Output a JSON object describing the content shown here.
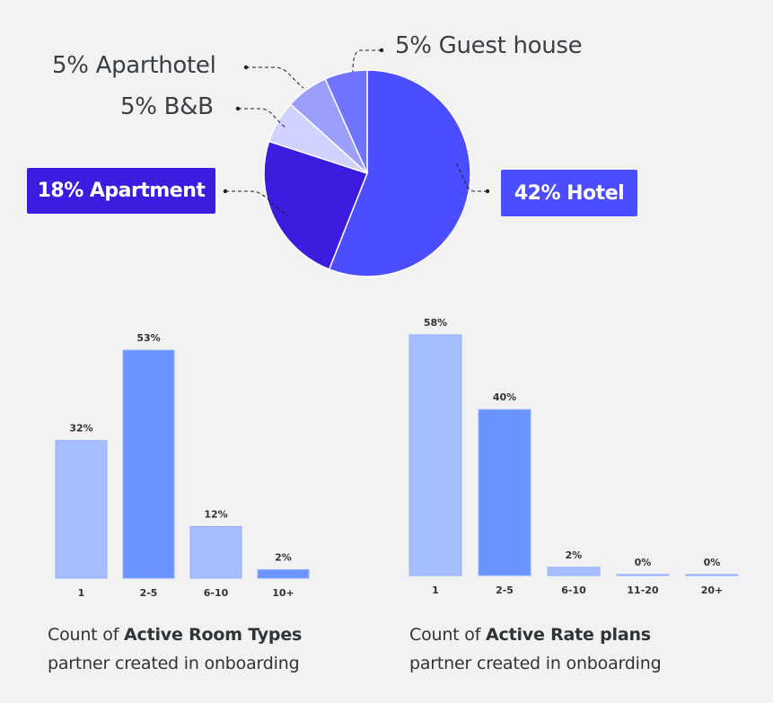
{
  "colors": {
    "hotel": "#4b4dff",
    "apartment": "#3d1ce0",
    "bnb": "#d1d2ff",
    "aparthotel": "#9b9efb",
    "guest_house": "#6f73ff",
    "bar_light": "#a6beff",
    "bar_dark": "#6b94ff",
    "bar_edge": "#90b0fb"
  },
  "pie": {
    "labels": {
      "hotel": "42% Hotel",
      "apartment": "18% Apartment",
      "bnb": "5% B&B",
      "aparthotel": "5% Aparthotel",
      "guest_house": "5% Guest house"
    }
  },
  "captions": {
    "room_types": {
      "prefix": "Count of ",
      "bold": "Active Room Types",
      "line2": "partner created in onboarding"
    },
    "rate_plans": {
      "prefix": "Count of ",
      "bold": "Active Rate plans",
      "line2": "partner created in onboarding"
    }
  },
  "chart_data": [
    {
      "type": "pie",
      "categories": [
        "Hotel",
        "Apartment",
        "B&B",
        "Aparthotel",
        "Guest house"
      ],
      "values": [
        42,
        18,
        5,
        5,
        5
      ],
      "unit": "%"
    },
    {
      "type": "bar",
      "categories": [
        "1",
        "2-5",
        "6-10",
        "10+"
      ],
      "values": [
        32,
        53,
        12,
        2
      ],
      "value_labels": [
        "32%",
        "53%",
        "12%",
        "2%"
      ],
      "ylim": [
        0,
        53
      ]
    },
    {
      "type": "bar",
      "categories": [
        "1",
        "2-5",
        "6-10",
        "11-20",
        "20+"
      ],
      "values": [
        58,
        40,
        2,
        0,
        0
      ],
      "value_labels": [
        "58%",
        "40%",
        "2%",
        "0%",
        "0%"
      ],
      "ylim": [
        0,
        58
      ]
    }
  ]
}
